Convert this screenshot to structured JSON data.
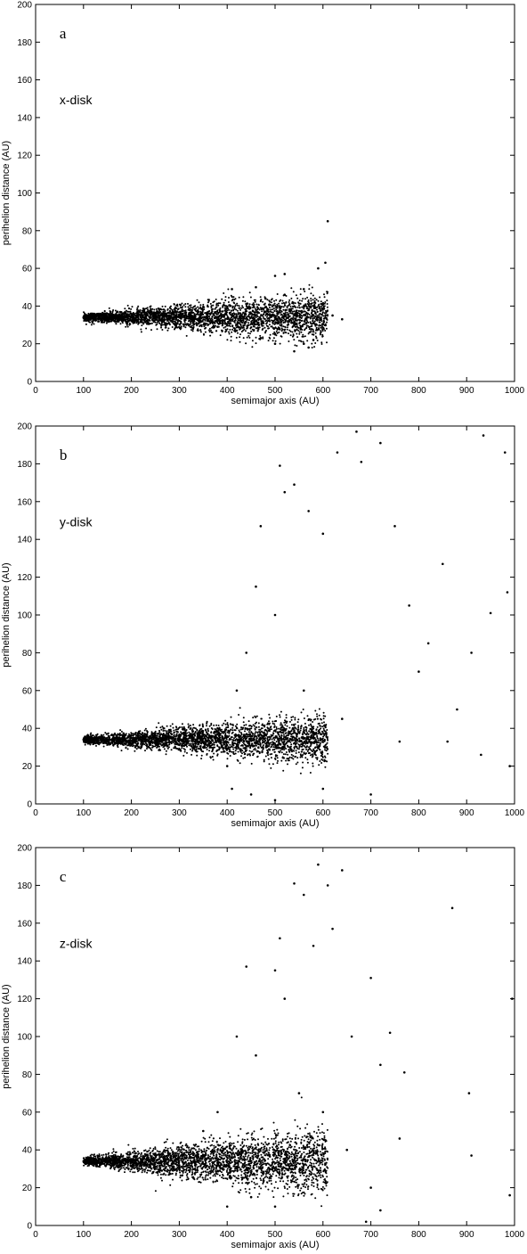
{
  "chart_data": [
    {
      "type": "scatter",
      "panel_label": "a",
      "annotation": "x-disk",
      "xlabel": "semimajor axis (AU)",
      "ylabel": "perihelion distance (AU)",
      "xlim": [
        0,
        1000
      ],
      "ylim": [
        0,
        200
      ],
      "xticks": [
        "0",
        "100",
        "200",
        "300",
        "400",
        "500",
        "600",
        "700",
        "800",
        "900",
        "1000"
      ],
      "yticks": [
        "0",
        "20",
        "40",
        "60",
        "80",
        "100",
        "120",
        "140",
        "160",
        "180",
        "200"
      ],
      "grid": false,
      "points": [
        [
          100,
          34
        ],
        [
          120,
          33
        ],
        [
          150,
          34
        ],
        [
          180,
          33
        ],
        [
          200,
          35
        ],
        [
          230,
          34
        ],
        [
          250,
          33
        ],
        [
          280,
          35
        ],
        [
          300,
          34
        ],
        [
          320,
          30
        ],
        [
          340,
          37
        ],
        [
          360,
          33
        ],
        [
          380,
          29
        ],
        [
          400,
          39
        ],
        [
          420,
          27
        ],
        [
          440,
          41
        ],
        [
          460,
          32
        ],
        [
          480,
          44
        ],
        [
          500,
          25
        ],
        [
          520,
          46
        ],
        [
          540,
          30
        ],
        [
          560,
          49
        ],
        [
          580,
          22
        ],
        [
          600,
          41
        ],
        [
          620,
          35
        ],
        [
          640,
          33
        ],
        [
          410,
          49
        ],
        [
          460,
          50
        ],
        [
          500,
          56
        ],
        [
          520,
          57
        ],
        [
          590,
          60
        ],
        [
          605,
          63
        ],
        [
          610,
          85
        ],
        [
          570,
          18
        ],
        [
          560,
          20
        ],
        [
          540,
          16
        ],
        [
          500,
          20
        ],
        [
          470,
          23
        ]
      ]
    },
    {
      "type": "scatter",
      "panel_label": "b",
      "annotation": "y-disk",
      "xlabel": "semimajor axis (AU)",
      "ylabel": "perihelion distance (AU)",
      "xlim": [
        0,
        1000
      ],
      "ylim": [
        0,
        200
      ],
      "xticks": [
        "0",
        "100",
        "200",
        "300",
        "400",
        "500",
        "600",
        "700",
        "800",
        "900",
        "1000"
      ],
      "yticks": [
        "0",
        "20",
        "40",
        "60",
        "80",
        "100",
        "120",
        "140",
        "160",
        "180",
        "200"
      ],
      "grid": false,
      "points": [
        [
          100,
          34
        ],
        [
          150,
          33
        ],
        [
          200,
          35
        ],
        [
          250,
          32
        ],
        [
          300,
          36
        ],
        [
          350,
          30
        ],
        [
          380,
          40
        ],
        [
          400,
          20
        ],
        [
          420,
          60
        ],
        [
          440,
          80
        ],
        [
          460,
          115
        ],
        [
          470,
          147
        ],
        [
          500,
          100
        ],
        [
          510,
          179
        ],
        [
          520,
          165
        ],
        [
          540,
          169
        ],
        [
          570,
          155
        ],
        [
          600,
          143
        ],
        [
          630,
          186
        ],
        [
          670,
          197
        ],
        [
          680,
          181
        ],
        [
          720,
          191
        ],
        [
          750,
          147
        ],
        [
          780,
          105
        ],
        [
          800,
          70
        ],
        [
          820,
          85
        ],
        [
          850,
          127
        ],
        [
          880,
          50
        ],
        [
          930,
          26
        ],
        [
          935,
          195
        ],
        [
          950,
          101
        ],
        [
          980,
          186
        ],
        [
          985,
          112
        ],
        [
          990,
          20
        ],
        [
          700,
          5
        ],
        [
          600,
          8
        ],
        [
          500,
          2
        ],
        [
          450,
          5
        ],
        [
          410,
          8
        ],
        [
          560,
          60
        ],
        [
          640,
          45
        ],
        [
          760,
          33
        ],
        [
          860,
          33
        ],
        [
          910,
          80
        ]
      ]
    },
    {
      "type": "scatter",
      "panel_label": "c",
      "annotation": "z-disk",
      "xlabel": "semimajor axis (AU)",
      "ylabel": "perihelion distance (AU)",
      "xlim": [
        0,
        1000
      ],
      "ylim": [
        0,
        200
      ],
      "xticks": [
        "0",
        "100",
        "200",
        "300",
        "400",
        "500",
        "600",
        "700",
        "800",
        "900",
        "1000"
      ],
      "yticks": [
        "0",
        "20",
        "40",
        "60",
        "80",
        "100",
        "120",
        "140",
        "160",
        "180",
        "200"
      ],
      "grid": false,
      "points": [
        [
          100,
          34
        ],
        [
          150,
          33
        ],
        [
          200,
          34
        ],
        [
          250,
          31
        ],
        [
          300,
          36
        ],
        [
          330,
          25
        ],
        [
          350,
          50
        ],
        [
          380,
          40
        ],
        [
          400,
          10
        ],
        [
          420,
          100
        ],
        [
          440,
          137
        ],
        [
          460,
          90
        ],
        [
          500,
          135
        ],
        [
          510,
          152
        ],
        [
          520,
          120
        ],
        [
          540,
          181
        ],
        [
          560,
          175
        ],
        [
          580,
          148
        ],
        [
          590,
          191
        ],
        [
          610,
          180
        ],
        [
          620,
          157
        ],
        [
          640,
          188
        ],
        [
          660,
          100
        ],
        [
          700,
          131
        ],
        [
          720,
          85
        ],
        [
          740,
          102
        ],
        [
          770,
          81
        ],
        [
          870,
          168
        ],
        [
          905,
          70
        ],
        [
          910,
          37
        ],
        [
          990,
          16
        ],
        [
          995,
          120
        ],
        [
          600,
          60
        ],
        [
          650,
          40
        ],
        [
          700,
          20
        ],
        [
          720,
          8
        ],
        [
          690,
          2
        ],
        [
          500,
          10
        ],
        [
          450,
          15
        ],
        [
          380,
          60
        ],
        [
          550,
          70
        ],
        [
          760,
          46
        ]
      ]
    }
  ]
}
